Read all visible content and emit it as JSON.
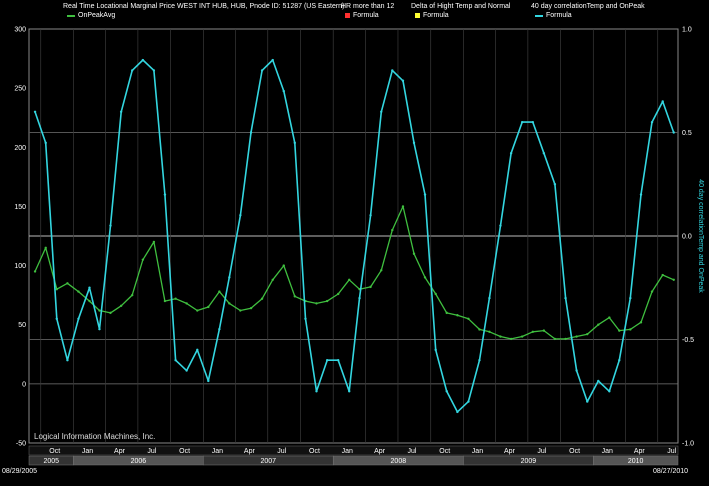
{
  "legends": [
    {
      "title": "Real Time Locational Marginal Price WEST INT HUB, HUB, Pnode ID: 51287 (US Eastern)",
      "item": "OnPeakAvg",
      "swatch": "line",
      "color": "#3fbf3f"
    },
    {
      "title": "HR more than 12",
      "item": "Formula",
      "swatch": "box",
      "color": "#ff3030"
    },
    {
      "title": "Delta of Hight Temp and Normal",
      "item": "Formula",
      "swatch": "box",
      "color": "#ffff33"
    },
    {
      "title": "40 day correlationTemp and OnPeak",
      "item": "Formula",
      "swatch": "line",
      "color": "#33d6e0"
    }
  ],
  "watermark": "Logical Information Machines, Inc.",
  "start_date": "08/29/2005",
  "end_date": "08/27/2010",
  "chart_data": {
    "type": "line",
    "left_axis": {
      "ticks": [
        "300",
        "250",
        "200",
        "150",
        "100",
        "50",
        "0",
        "-50"
      ],
      "ylim": [
        -50,
        300
      ]
    },
    "right_axis": {
      "label": "40 day correlationTemp and OnPeak",
      "ticks": [
        "1.0",
        "0.5",
        "0.0",
        "-0.5",
        "-1.0"
      ],
      "ylim": [
        -1.0,
        1.0
      ]
    },
    "month_labels": [
      "Oct",
      "Jan",
      "Apr",
      "Jul",
      "Oct",
      "Jan",
      "Apr",
      "Jul",
      "Oct",
      "Jan",
      "Apr",
      "Jul",
      "Oct",
      "Jan",
      "Apr",
      "Jul",
      "Oct",
      "Jan",
      "Apr",
      "Jul"
    ],
    "year_labels": [
      "2005",
      "2006",
      "2007",
      "2008",
      "2009",
      "2010"
    ],
    "series": [
      {
        "name": "OnPeakAvg",
        "axis": "left",
        "color": "#3fbf3f",
        "x": [
          "2005-09",
          "2005-10",
          "2005-11",
          "2005-12",
          "2006-01",
          "2006-02",
          "2006-03",
          "2006-04",
          "2006-05",
          "2006-06",
          "2006-07",
          "2006-08",
          "2006-09",
          "2006-10",
          "2006-11",
          "2006-12",
          "2007-01",
          "2007-02",
          "2007-03",
          "2007-04",
          "2007-05",
          "2007-06",
          "2007-07",
          "2007-08",
          "2007-09",
          "2007-10",
          "2007-11",
          "2007-12",
          "2008-01",
          "2008-02",
          "2008-03",
          "2008-04",
          "2008-05",
          "2008-06",
          "2008-07",
          "2008-08",
          "2008-09",
          "2008-10",
          "2008-11",
          "2008-12",
          "2009-01",
          "2009-02",
          "2009-03",
          "2009-04",
          "2009-05",
          "2009-06",
          "2009-07",
          "2009-08",
          "2009-09",
          "2009-10",
          "2009-11",
          "2009-12",
          "2010-01",
          "2010-02",
          "2010-03",
          "2010-04",
          "2010-05",
          "2010-06",
          "2010-07",
          "2010-08"
        ],
        "values": [
          95,
          115,
          80,
          85,
          78,
          70,
          62,
          60,
          66,
          75,
          105,
          120,
          70,
          72,
          68,
          62,
          65,
          78,
          68,
          62,
          64,
          72,
          88,
          100,
          74,
          70,
          68,
          70,
          76,
          88,
          80,
          82,
          96,
          130,
          150,
          110,
          90,
          76,
          60,
          58,
          55,
          46,
          44,
          40,
          38,
          40,
          44,
          45,
          38,
          38,
          40,
          42,
          50,
          56,
          45,
          46,
          52,
          78,
          92,
          88
        ]
      },
      {
        "name": "Formula",
        "axis": "right",
        "color": "#33d6e0",
        "x": [
          "2005-09",
          "2005-10",
          "2005-11",
          "2005-12",
          "2006-01",
          "2006-02",
          "2006-03",
          "2006-04",
          "2006-05",
          "2006-06",
          "2006-07",
          "2006-08",
          "2006-09",
          "2006-10",
          "2006-11",
          "2006-12",
          "2007-01",
          "2007-02",
          "2007-03",
          "2007-04",
          "2007-05",
          "2007-06",
          "2007-07",
          "2007-08",
          "2007-09",
          "2007-10",
          "2007-11",
          "2007-12",
          "2008-01",
          "2008-02",
          "2008-03",
          "2008-04",
          "2008-05",
          "2008-06",
          "2008-07",
          "2008-08",
          "2008-09",
          "2008-10",
          "2008-11",
          "2008-12",
          "2009-01",
          "2009-02",
          "2009-03",
          "2009-04",
          "2009-05",
          "2009-06",
          "2009-07",
          "2009-08",
          "2009-09",
          "2009-10",
          "2009-11",
          "2009-12",
          "2010-01",
          "2010-02",
          "2010-03",
          "2010-04",
          "2010-05",
          "2010-06",
          "2010-07",
          "2010-08"
        ],
        "values": [
          0.6,
          0.45,
          -0.4,
          -0.6,
          -0.4,
          -0.25,
          -0.45,
          0.05,
          0.6,
          0.8,
          0.85,
          0.8,
          0.2,
          -0.6,
          -0.65,
          -0.55,
          -0.7,
          -0.45,
          -0.2,
          0.1,
          0.5,
          0.8,
          0.85,
          0.7,
          0.45,
          -0.4,
          -0.75,
          -0.6,
          -0.6,
          -0.75,
          -0.3,
          0.1,
          0.6,
          0.8,
          0.75,
          0.45,
          0.2,
          -0.55,
          -0.75,
          -0.85,
          -0.8,
          -0.6,
          -0.3,
          0.05,
          0.4,
          0.55,
          0.55,
          0.4,
          0.25,
          -0.3,
          -0.65,
          -0.8,
          -0.7,
          -0.75,
          -0.6,
          -0.3,
          0.2,
          0.55,
          0.65,
          0.5
        ]
      }
    ]
  }
}
